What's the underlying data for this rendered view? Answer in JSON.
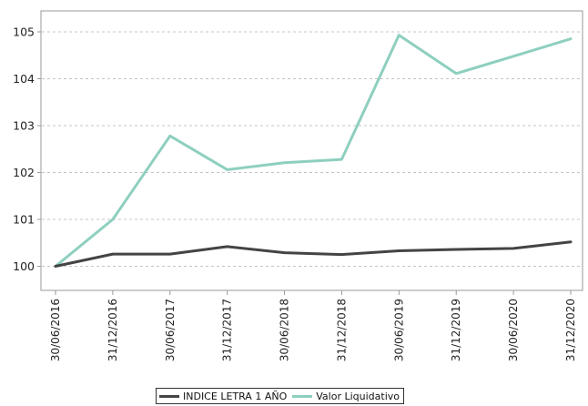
{
  "chart_data": {
    "type": "line",
    "title": "",
    "xlabel": "",
    "ylabel": "",
    "categories": [
      "30/06/2016",
      "31/12/2016",
      "30/06/2017",
      "31/12/2017",
      "30/06/2018",
      "31/12/2018",
      "30/06/2019",
      "31/12/2019",
      "30/06/2020",
      "31/12/2020"
    ],
    "series": [
      {
        "name": "INDICE LETRA 1 AÑO",
        "color": "#444444",
        "values": [
          100.0,
          100.26,
          100.26,
          100.42,
          100.29,
          100.25,
          100.33,
          100.36,
          100.38,
          100.52
        ]
      },
      {
        "name": "Valor Liquidativo",
        "color": "#8ecfbf",
        "values": [
          100.0,
          101.0,
          102.78,
          102.06,
          102.21,
          102.28,
          104.93,
          104.11,
          104.48,
          104.85
        ]
      }
    ],
    "yticks": [
      100,
      101,
      102,
      103,
      104,
      105
    ],
    "ylim": [
      99.45,
      105.5
    ],
    "grid": "horizontal dashed",
    "legend_position": "bottom-center"
  }
}
